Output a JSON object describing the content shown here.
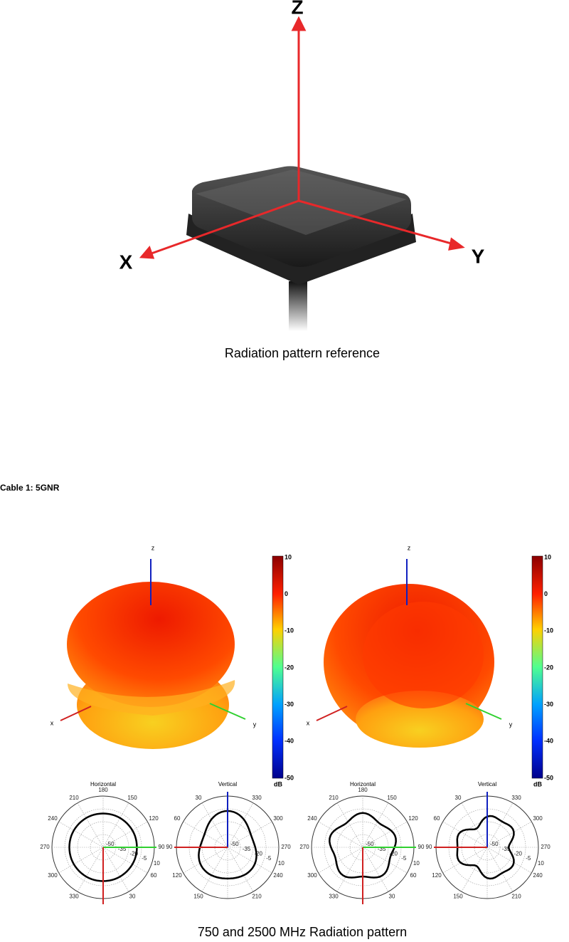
{
  "reference": {
    "axis_labels": {
      "z": "Z",
      "x": "X",
      "y": "Y"
    },
    "caption": "Radiation pattern reference"
  },
  "section": {
    "title": "Cable 1: 5GNR"
  },
  "patterns": [
    {
      "axis_labels": {
        "z": "z",
        "x": "x",
        "y": "y"
      },
      "colorbar_ticks": [
        10,
        0,
        -10,
        -20,
        -30,
        -40,
        -50
      ],
      "colorbar_unit": "dB",
      "polar": [
        {
          "title": "Horizontal",
          "angles": [
            180,
            150,
            120,
            90,
            60,
            30,
            330,
            300,
            270,
            240,
            210
          ],
          "rings": [
            -50,
            -35,
            -20,
            -5,
            10
          ]
        },
        {
          "title": "Vertical",
          "angles": [
            330,
            300,
            270,
            240,
            210,
            150,
            120,
            90,
            60,
            30
          ],
          "rings": [
            -50,
            -35,
            -20,
            -5,
            10
          ]
        }
      ]
    },
    {
      "axis_labels": {
        "z": "z",
        "x": "x",
        "y": "y"
      },
      "colorbar_ticks": [
        10,
        0,
        -10,
        -20,
        -30,
        -40,
        -50
      ],
      "colorbar_unit": "dB",
      "polar": [
        {
          "title": "Horizontal",
          "angles": [
            180,
            150,
            120,
            90,
            60,
            30,
            330,
            300,
            270,
            240,
            210
          ],
          "rings": [
            -50,
            -35,
            -20,
            -5,
            10
          ]
        },
        {
          "title": "Vertical",
          "angles": [
            330,
            300,
            270,
            240,
            210,
            150,
            120,
            90,
            60,
            30
          ],
          "rings": [
            -50,
            -35,
            -20,
            -5,
            10
          ]
        }
      ]
    }
  ],
  "caption": "750 and 2500 MHz Radiation pattern"
}
